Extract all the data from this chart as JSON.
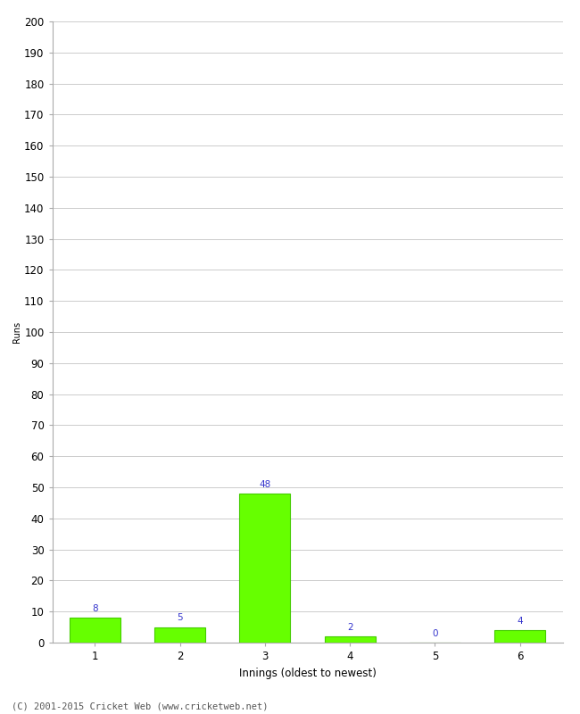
{
  "categories": [
    1,
    2,
    3,
    4,
    5,
    6
  ],
  "values": [
    8,
    5,
    48,
    2,
    0,
    4
  ],
  "bar_color": "#66ff00",
  "bar_edgecolor": "#44cc00",
  "label_color": "#3333cc",
  "xlabel": "Innings (oldest to newest)",
  "ylabel": "Runs",
  "ylim": [
    0,
    200
  ],
  "yticks": [
    0,
    10,
    20,
    30,
    40,
    50,
    60,
    70,
    80,
    90,
    100,
    110,
    120,
    130,
    140,
    150,
    160,
    170,
    180,
    190,
    200
  ],
  "footer": "(C) 2001-2015 Cricket Web (www.cricketweb.net)",
  "background_color": "#ffffff",
  "grid_color": "#cccccc",
  "label_fontsize": 7.5,
  "axis_fontsize": 8.5,
  "ylabel_fontsize": 7,
  "footer_fontsize": 7.5,
  "spine_color": "#aaaaaa"
}
